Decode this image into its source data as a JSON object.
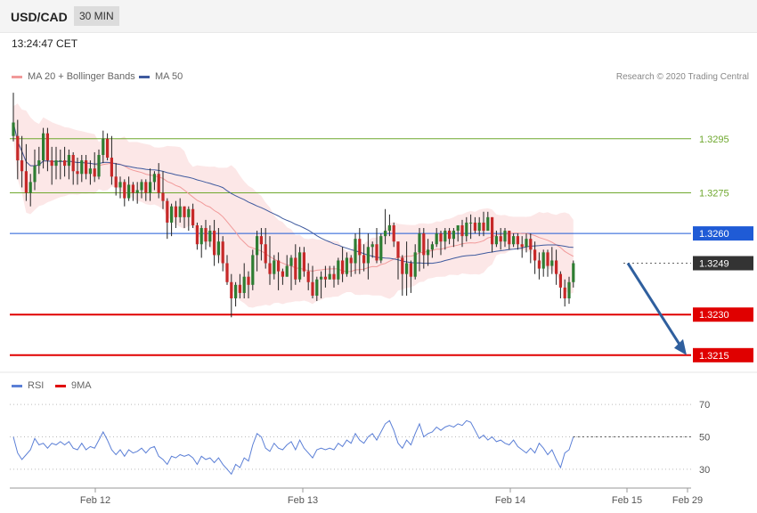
{
  "header": {
    "symbol": "USD/CAD",
    "timeframe": "30 MIN",
    "time": "13:24:47 CET"
  },
  "legend": {
    "ma20_bb": "MA 20 + Bollinger Bands",
    "ma50": "MA 50",
    "rsi": "RSI",
    "ma9": "9MA",
    "credit": "Research © 2020 Trading Central"
  },
  "colors": {
    "up": "#2e7d32",
    "down": "#c62828",
    "bands": "#f8c9c9",
    "ma20": "#f19a9a",
    "ma50": "#3f5a9e",
    "support": "#e00000",
    "target": "#6fa82f",
    "pivot": "#1f5bd6",
    "current": "#333333",
    "arrow": "#2f5f9e",
    "rsi": "#5b7fd6"
  },
  "chart_data": [
    {
      "type": "candlestick",
      "x_labels": [
        "Feb 12",
        "Feb 13",
        "Feb 14",
        "Feb 15",
        "Feb 29"
      ],
      "ylim": [
        1.321,
        1.3315
      ],
      "price_levels": [
        {
          "value": 1.3295,
          "label": "1.3295",
          "role": "target"
        },
        {
          "value": 1.3275,
          "label": "1.3275",
          "role": "target"
        },
        {
          "value": 1.326,
          "label": "1.3260",
          "role": "pivot"
        },
        {
          "value": 1.3249,
          "label": "1.3249",
          "role": "current"
        },
        {
          "value": 1.323,
          "label": "1.3230",
          "role": "support"
        },
        {
          "value": 1.3215,
          "label": "1.3215",
          "role": "support"
        }
      ],
      "candles": [
        [
          1.3296,
          1.3301,
          1.3312,
          1.3294
        ],
        [
          1.3296,
          1.3287,
          1.3302,
          1.328
        ],
        [
          1.3287,
          1.3283,
          1.3296,
          1.3277
        ],
        [
          1.3283,
          1.3275,
          1.3293,
          1.3272
        ],
        [
          1.3275,
          1.3279,
          1.3282,
          1.327
        ],
        [
          1.3279,
          1.3285,
          1.3291,
          1.3276
        ],
        [
          1.3285,
          1.3287,
          1.3292,
          1.3282
        ],
        [
          1.3287,
          1.3297,
          1.3299,
          1.3284
        ],
        [
          1.3297,
          1.3287,
          1.3299,
          1.3283
        ],
        [
          1.3287,
          1.3285,
          1.3292,
          1.3278
        ],
        [
          1.3285,
          1.3287,
          1.3292,
          1.328
        ],
        [
          1.3287,
          1.3287,
          1.3291,
          1.328
        ],
        [
          1.3287,
          1.3285,
          1.3292,
          1.3281
        ],
        [
          1.3285,
          1.3289,
          1.3291,
          1.328
        ],
        [
          1.3289,
          1.3283,
          1.329,
          1.3278
        ],
        [
          1.3283,
          1.3282,
          1.3288,
          1.3278
        ],
        [
          1.3282,
          1.3287,
          1.3289,
          1.3279
        ],
        [
          1.3287,
          1.3282,
          1.3289,
          1.328
        ],
        [
          1.3282,
          1.3284,
          1.3287,
          1.3278
        ],
        [
          1.3284,
          1.3281,
          1.329,
          1.3279
        ],
        [
          1.3281,
          1.3289,
          1.3291,
          1.328
        ],
        [
          1.3289,
          1.3295,
          1.3298,
          1.3286
        ],
        [
          1.3295,
          1.3288,
          1.3297,
          1.3287
        ],
        [
          1.3288,
          1.3281,
          1.3296,
          1.3278
        ],
        [
          1.3281,
          1.3277,
          1.3286,
          1.3274
        ],
        [
          1.3277,
          1.3279,
          1.3281,
          1.3273
        ],
        [
          1.3279,
          1.3273,
          1.328,
          1.327
        ],
        [
          1.3273,
          1.3278,
          1.3281,
          1.3272
        ],
        [
          1.3278,
          1.3275,
          1.3279,
          1.3272
        ],
        [
          1.3275,
          1.3276,
          1.3279,
          1.3271
        ],
        [
          1.3276,
          1.3279,
          1.328,
          1.3273
        ],
        [
          1.3279,
          1.3275,
          1.328,
          1.3272
        ],
        [
          1.3275,
          1.3279,
          1.3284,
          1.3272
        ],
        [
          1.3279,
          1.3282,
          1.3283,
          1.3276
        ],
        [
          1.3282,
          1.3275,
          1.3286,
          1.3273
        ],
        [
          1.3275,
          1.3272,
          1.3283,
          1.3269
        ],
        [
          1.3272,
          1.3264,
          1.3273,
          1.3258
        ],
        [
          1.3264,
          1.327,
          1.3271,
          1.3259
        ],
        [
          1.327,
          1.3266,
          1.3272,
          1.3262
        ],
        [
          1.3266,
          1.327,
          1.3273,
          1.3264
        ],
        [
          1.327,
          1.3266,
          1.327,
          1.3262
        ],
        [
          1.3266,
          1.3269,
          1.327,
          1.3261
        ],
        [
          1.3269,
          1.3263,
          1.3271,
          1.3262
        ],
        [
          1.3263,
          1.3256,
          1.3264,
          1.3254
        ],
        [
          1.3256,
          1.3262,
          1.3263,
          1.3251
        ],
        [
          1.3262,
          1.3257,
          1.3265,
          1.3254
        ],
        [
          1.3257,
          1.3261,
          1.3263,
          1.3255
        ],
        [
          1.3261,
          1.3252,
          1.3265,
          1.3248
        ],
        [
          1.3252,
          1.3257,
          1.3262,
          1.3249
        ],
        [
          1.3257,
          1.3249,
          1.3259,
          1.3246
        ],
        [
          1.3249,
          1.3242,
          1.3252,
          1.3241
        ],
        [
          1.3242,
          1.3236,
          1.3245,
          1.3229
        ],
        [
          1.3236,
          1.3241,
          1.3242,
          1.3233
        ],
        [
          1.3241,
          1.3238,
          1.3245,
          1.3236
        ],
        [
          1.3238,
          1.3244,
          1.3249,
          1.3236
        ],
        [
          1.3244,
          1.3241,
          1.3246,
          1.3236
        ],
        [
          1.3241,
          1.3252,
          1.3254,
          1.3239
        ],
        [
          1.3252,
          1.3259,
          1.3261,
          1.3246
        ],
        [
          1.3259,
          1.3256,
          1.3262,
          1.325
        ],
        [
          1.3256,
          1.3249,
          1.3262,
          1.3247
        ],
        [
          1.3249,
          1.3245,
          1.3259,
          1.3241
        ],
        [
          1.3245,
          1.325,
          1.3252,
          1.3243
        ],
        [
          1.325,
          1.3246,
          1.3253,
          1.3239
        ],
        [
          1.3246,
          1.3244,
          1.3247,
          1.3241
        ],
        [
          1.3244,
          1.3248,
          1.3252,
          1.3244
        ],
        [
          1.3248,
          1.3251,
          1.3252,
          1.3239
        ],
        [
          1.3251,
          1.3243,
          1.3256,
          1.3241
        ],
        [
          1.3243,
          1.3253,
          1.3255,
          1.3242
        ],
        [
          1.3253,
          1.3246,
          1.3255,
          1.3244
        ],
        [
          1.3246,
          1.3242,
          1.3249,
          1.3239
        ],
        [
          1.3242,
          1.3237,
          1.3248,
          1.3236
        ],
        [
          1.3237,
          1.3243,
          1.3244,
          1.3235
        ],
        [
          1.3243,
          1.3244,
          1.3246,
          1.3236
        ],
        [
          1.3244,
          1.3243,
          1.3248,
          1.324
        ],
        [
          1.3243,
          1.3245,
          1.3248,
          1.3243
        ],
        [
          1.3245,
          1.3243,
          1.3248,
          1.324
        ],
        [
          1.3243,
          1.325,
          1.3251,
          1.3241
        ],
        [
          1.325,
          1.3245,
          1.3255,
          1.3242
        ],
        [
          1.3245,
          1.3251,
          1.3253,
          1.3244
        ],
        [
          1.3251,
          1.3249,
          1.3252,
          1.3244
        ],
        [
          1.3249,
          1.3258,
          1.326,
          1.3245
        ],
        [
          1.3258,
          1.3252,
          1.3262,
          1.3245
        ],
        [
          1.3252,
          1.3249,
          1.3256,
          1.3246
        ],
        [
          1.3249,
          1.3255,
          1.326,
          1.3243
        ],
        [
          1.3255,
          1.3256,
          1.3257,
          1.3251
        ],
        [
          1.3256,
          1.325,
          1.3262,
          1.3249
        ],
        [
          1.325,
          1.3259,
          1.326,
          1.3249
        ],
        [
          1.3259,
          1.3261,
          1.3269,
          1.3256
        ],
        [
          1.3261,
          1.3263,
          1.3267,
          1.3259
        ],
        [
          1.3263,
          1.3257,
          1.3264,
          1.3255
        ],
        [
          1.3257,
          1.3251,
          1.3257,
          1.3243
        ],
        [
          1.3251,
          1.3245,
          1.3252,
          1.3237
        ],
        [
          1.3245,
          1.3249,
          1.3257,
          1.3237
        ],
        [
          1.3249,
          1.3244,
          1.325,
          1.3238
        ],
        [
          1.3244,
          1.3253,
          1.3256,
          1.3243
        ],
        [
          1.3253,
          1.326,
          1.3262,
          1.3246
        ],
        [
          1.326,
          1.3252,
          1.3262,
          1.3247
        ],
        [
          1.3252,
          1.3254,
          1.3258,
          1.3248
        ],
        [
          1.3254,
          1.3256,
          1.3257,
          1.3251
        ],
        [
          1.3256,
          1.326,
          1.3262,
          1.3255
        ],
        [
          1.326,
          1.3257,
          1.3261,
          1.3252
        ],
        [
          1.3257,
          1.3261,
          1.3262,
          1.3254
        ],
        [
          1.3261,
          1.3258,
          1.3262,
          1.3256
        ],
        [
          1.3258,
          1.3261,
          1.3262,
          1.3255
        ],
        [
          1.3261,
          1.3263,
          1.3263,
          1.3257
        ],
        [
          1.3263,
          1.3259,
          1.3265,
          1.3255
        ],
        [
          1.3259,
          1.3264,
          1.3266,
          1.3257
        ],
        [
          1.3264,
          1.3264,
          1.3267,
          1.3258
        ],
        [
          1.3264,
          1.3261,
          1.3266,
          1.326
        ],
        [
          1.3261,
          1.3264,
          1.3266,
          1.3259
        ],
        [
          1.3264,
          1.3261,
          1.3268,
          1.3259
        ],
        [
          1.3261,
          1.3266,
          1.3268,
          1.3261
        ],
        [
          1.3266,
          1.3256,
          1.3266,
          1.3253
        ],
        [
          1.3256,
          1.3259,
          1.3261,
          1.3255
        ],
        [
          1.3259,
          1.3257,
          1.3262,
          1.3254
        ],
        [
          1.3257,
          1.3261,
          1.3262,
          1.3255
        ],
        [
          1.3261,
          1.3256,
          1.3261,
          1.3254
        ],
        [
          1.3256,
          1.3259,
          1.326,
          1.3255
        ],
        [
          1.3259,
          1.3256,
          1.326,
          1.3254
        ],
        [
          1.3256,
          1.3255,
          1.3259,
          1.3251
        ],
        [
          1.3255,
          1.3258,
          1.326,
          1.3253
        ],
        [
          1.3258,
          1.3254,
          1.326,
          1.3249
        ],
        [
          1.3254,
          1.325,
          1.3257,
          1.3245
        ],
        [
          1.325,
          1.3247,
          1.3253,
          1.3243
        ],
        [
          1.3247,
          1.3253,
          1.3254,
          1.3244
        ],
        [
          1.3253,
          1.3248,
          1.3254,
          1.3244
        ],
        [
          1.3248,
          1.325,
          1.3255,
          1.3245
        ],
        [
          1.325,
          1.3245,
          1.3254,
          1.3241
        ],
        [
          1.3245,
          1.324,
          1.3246,
          1.3236
        ],
        [
          1.324,
          1.3236,
          1.3243,
          1.3233
        ],
        [
          1.3236,
          1.3242,
          1.3244,
          1.3234
        ],
        [
          1.3242,
          1.3249,
          1.325,
          1.324
        ]
      ]
    },
    {
      "type": "line",
      "name": "RSI",
      "y_ticks": [
        30,
        50,
        70
      ],
      "ylim": [
        20,
        75
      ],
      "values": [
        50,
        40,
        36,
        39,
        42,
        49,
        45,
        46,
        43,
        46,
        45,
        47,
        45,
        47,
        43,
        42,
        46,
        42,
        44,
        43,
        48,
        53,
        48,
        42,
        39,
        42,
        38,
        42,
        40,
        41,
        43,
        40,
        43,
        44,
        38,
        36,
        33,
        38,
        37,
        39,
        38,
        39,
        37,
        33,
        38,
        36,
        37,
        34,
        37,
        33,
        30,
        27,
        33,
        31,
        37,
        35,
        45,
        52,
        50,
        43,
        41,
        46,
        43,
        42,
        45,
        47,
        42,
        48,
        43,
        40,
        37,
        42,
        43,
        42,
        43,
        42,
        46,
        44,
        48,
        46,
        52,
        48,
        46,
        50,
        52,
        48,
        53,
        58,
        60,
        54,
        46,
        43,
        48,
        45,
        52,
        58,
        50,
        52,
        53,
        56,
        54,
        56,
        57,
        56,
        58,
        57,
        60,
        59,
        54,
        49,
        51,
        48,
        50,
        47,
        48,
        46,
        45,
        48,
        44,
        42,
        40,
        43,
        40,
        46,
        43,
        39,
        42,
        36,
        31,
        40,
        42,
        50
      ]
    }
  ]
}
